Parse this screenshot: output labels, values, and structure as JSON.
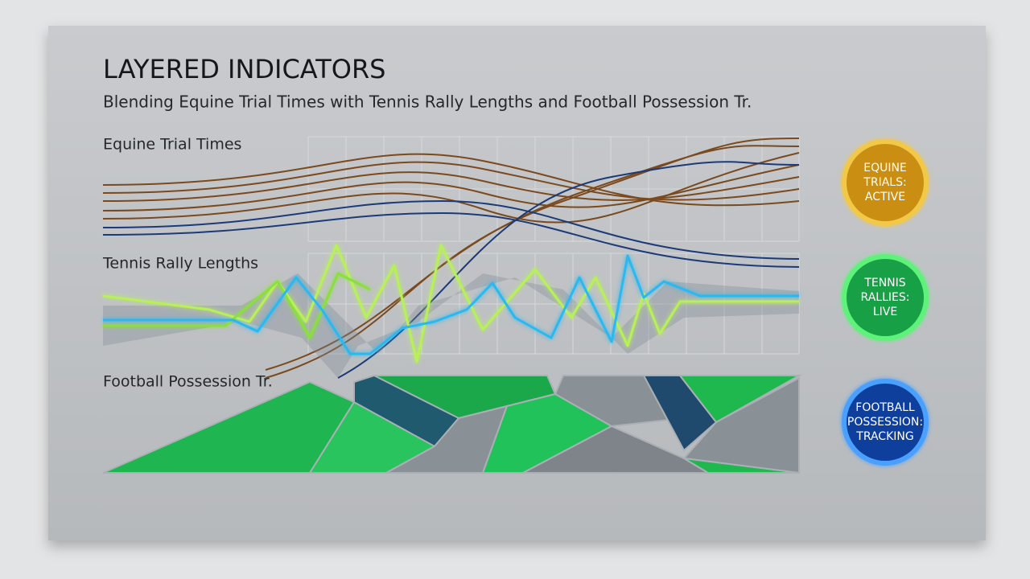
{
  "header": {
    "title": "LAYERED INDICATORS",
    "subtitle": "Blending Equine Trial Times with Tennis Rally Lengths and Football Possession Tr."
  },
  "sections": [
    {
      "label": "Equine Trial Times"
    },
    {
      "label": "Tennis Rally Lengths"
    },
    {
      "label": "Football Possession Tr."
    }
  ],
  "badges": [
    {
      "lines": [
        "EQUINE",
        "TRIALS:",
        "ACTIVE"
      ]
    },
    {
      "lines": [
        "TENNIS",
        "RALLIES:",
        "LIVE"
      ]
    },
    {
      "lines": [
        "FOOTBALL",
        "POSSESSION:",
        "TRACKING"
      ]
    }
  ]
}
